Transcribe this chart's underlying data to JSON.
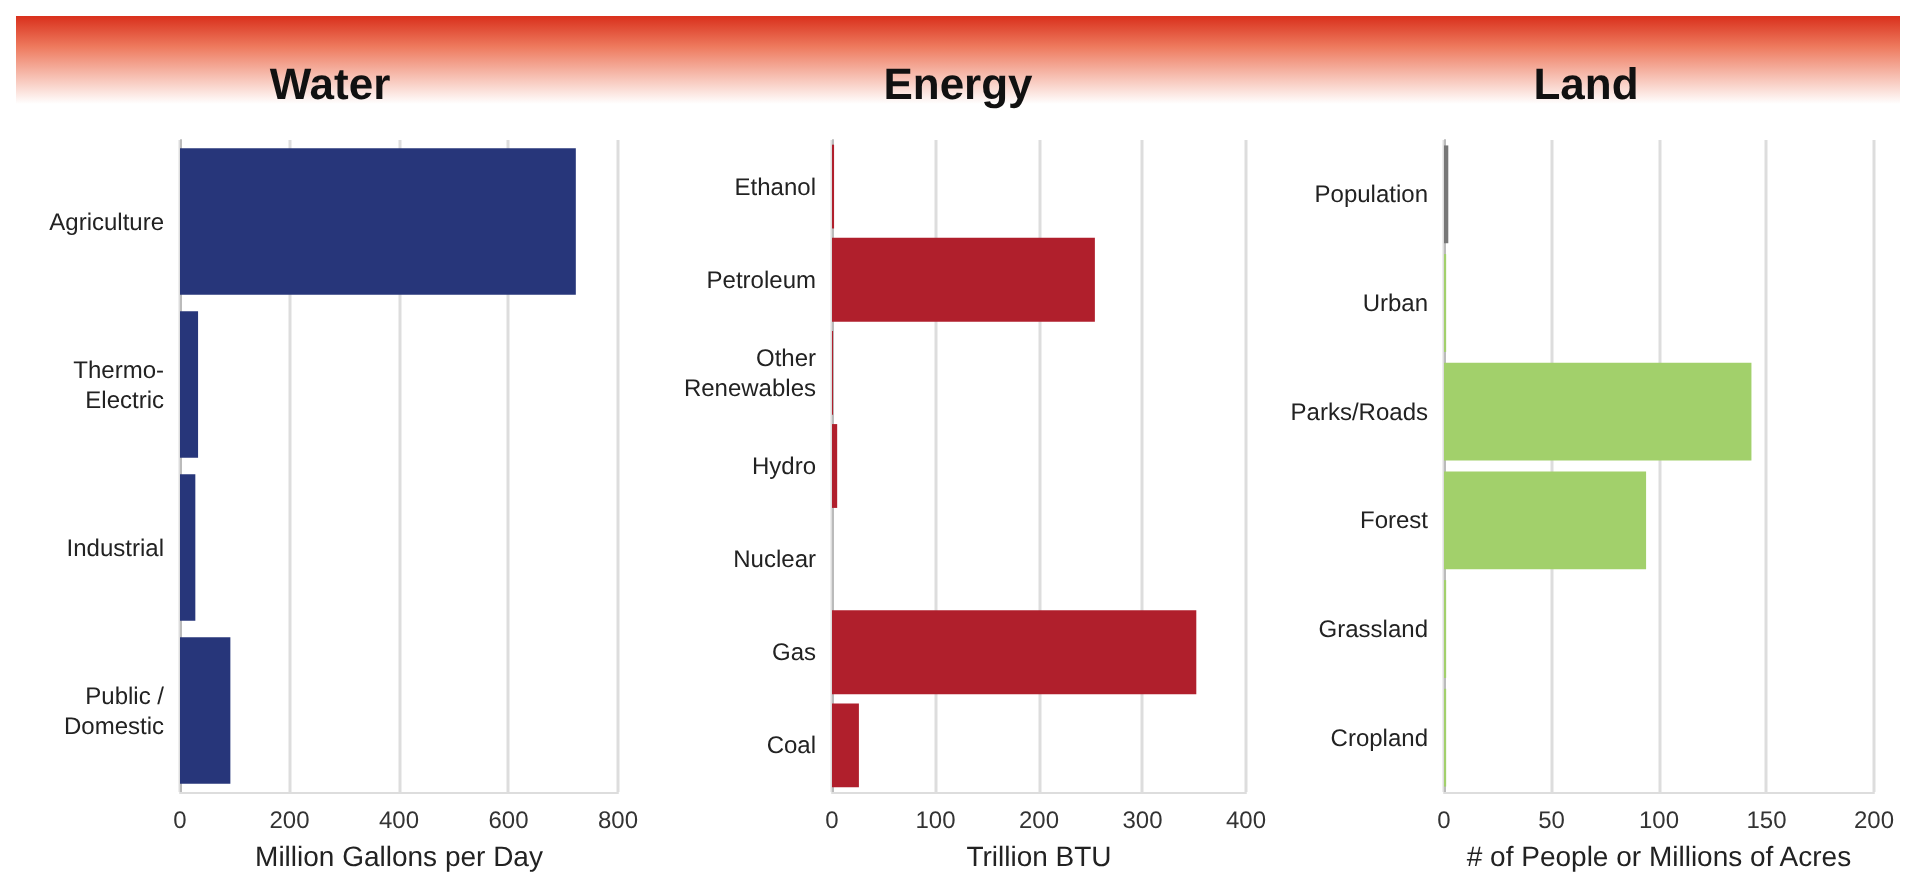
{
  "chart_data": [
    {
      "type": "bar",
      "orientation": "horizontal",
      "title": "Water",
      "xlabel": "Million Gallons per Day",
      "categories": [
        "Agriculture",
        "Thermo-\nElectric",
        "Industrial",
        "Public /\nDomestic"
      ],
      "values": [
        723,
        33,
        28,
        92
      ],
      "colors": [
        "#27367a",
        "#27367a",
        "#27367a",
        "#27367a"
      ],
      "xlim": [
        0,
        800
      ],
      "xticks": [
        0,
        200,
        400,
        600,
        800
      ],
      "grid": "x"
    },
    {
      "type": "bar",
      "orientation": "horizontal",
      "title": "Energy",
      "xlabel": "Trillion BTU",
      "categories": [
        "Ethanol",
        "Petroleum",
        "Other\nRenewables",
        "Hydro",
        "Nuclear",
        "Gas",
        "Coal"
      ],
      "values": [
        2,
        254,
        1,
        5,
        0,
        352,
        26
      ],
      "colors": [
        "#b01f2c",
        "#b01f2c",
        "#b01f2c",
        "#b01f2c",
        "#b01f2c",
        "#b01f2c",
        "#b01f2c"
      ],
      "xlim": [
        0,
        400
      ],
      "xticks": [
        0,
        100,
        200,
        300,
        400
      ],
      "grid": "x"
    },
    {
      "type": "bar",
      "orientation": "horizontal",
      "title": "Land",
      "xlabel": "# of People or Millions of Acres",
      "categories": [
        "Population",
        "Urban",
        "Parks/Roads",
        "Forest",
        "Grassland",
        "Cropland"
      ],
      "values": [
        2,
        1,
        143,
        94,
        1,
        1
      ],
      "colors": [
        "#777777",
        "#a2d06b",
        "#a2d06b",
        "#a2d06b",
        "#a2d06b",
        "#a2d06b"
      ],
      "xlim": [
        0,
        200
      ],
      "xticks": [
        0,
        50,
        100,
        150,
        200
      ],
      "grid": "x"
    }
  ]
}
